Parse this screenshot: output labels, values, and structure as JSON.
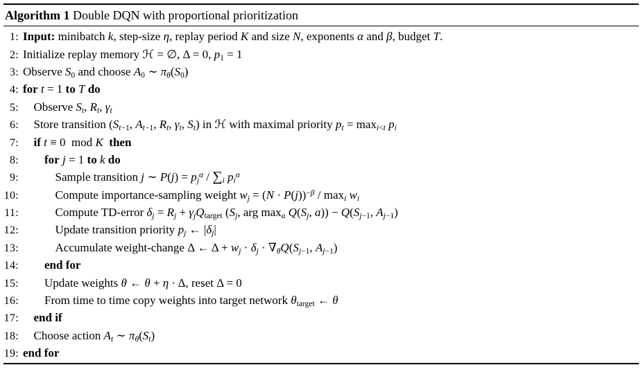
{
  "algorithm": {
    "caption": {
      "label": "Algorithm 1",
      "title": "Double DQN with proportional prioritization"
    },
    "lines": [
      {
        "num": "1:",
        "indent": 0,
        "html": "<b>Input:</b> minibatch <i>k</i>, step-size <i>η</i>, replay period <i>K</i> and size <i>N</i>, exponents <i>α</i> and <i>β</i>, budget <i>T</i>."
      },
      {
        "num": "2:",
        "indent": 0,
        "html": "Initialize replay memory <span class='cal'>ℋ</span> = ∅, Δ = 0, <i>p</i><sub>1</sub> = 1"
      },
      {
        "num": "3:",
        "indent": 0,
        "html": "Observe <i>S</i><sub>0</sub> and choose <i>A</i><sub>0</sub> ∼ <i>π<sub>θ</sub></i>(<i>S</i><sub>0</sub>)"
      },
      {
        "num": "4:",
        "indent": 0,
        "html": "<b>for</b> <i>t</i> = 1 <b>to</b> <i>T</i> <b>do</b>"
      },
      {
        "num": "5:",
        "indent": 1,
        "html": "Observe <i>S<sub>t</sub></i>, <i>R<sub>t</sub></i>, <i>γ<sub>t</sub></i>"
      },
      {
        "num": "6:",
        "indent": 1,
        "html": "Store transition (<i>S</i><sub><i>t</i>−1</sub>, <i>A</i><sub><i>t</i>−1</sub>, <i>R<sub>t</sub></i>, <i>γ<sub>t</sub></i>, <i>S<sub>t</sub></i>) in <span class='cal'>ℋ</span> with maximal priority <i>p<sub>t</sub></i> = max<sub><i>i</i>&lt;<i>t</i></sub> <i>p<sub>i</sub></i>"
      },
      {
        "num": "7:",
        "indent": 1,
        "html": "<b>if</b> <i>t</i> ≡ 0&nbsp; mod <i>K</i>&nbsp; <b>then</b>"
      },
      {
        "num": "8:",
        "indent": 2,
        "html": "<b>for</b> <i>j</i> = 1 <b>to</b> <i>k</i> <b>do</b>"
      },
      {
        "num": "9:",
        "indent": 3,
        "html": "Sample transition <i>j</i> ∼ <i>P</i>(<i>j</i>) = <i>p<sub>j</sub></i><sup><i>α</i></sup> / <span class='sum'>∑</span><sub><i>i</i></sub> <i>p<sub>i</sub></i><sup><i>α</i></sup>"
      },
      {
        "num": "10:",
        "indent": 3,
        "html": "Compute importance-sampling weight <i>w<sub>j</sub></i> = (<i>N</i> · <i>P</i>(<i>j</i>))<sup>−<i>β</i></sup> / max<sub><i>i</i></sub> <i>w<sub>i</sub></i>"
      },
      {
        "num": "11:",
        "indent": 3,
        "html": "Compute TD-error <i>δ<sub>j</sub></i> = <i>R<sub>j</sub></i> + <i>γ<sub>j</sub>Q</i><sub>target</sub> (<i>S<sub>j</sub></i>, arg max<sub><i>a</i></sub> <i>Q</i>(<i>S<sub>j</sub></i>, <i>a</i>)) − <i>Q</i>(<i>S</i><sub><i>j</i>−1</sub>, <i>A</i><sub><i>j</i>−1</sub>)"
      },
      {
        "num": "12:",
        "indent": 3,
        "html": "Update transition priority <i>p<sub>j</sub></i> ← |<i>δ<sub>j</sub></i>|"
      },
      {
        "num": "13:",
        "indent": 3,
        "html": "Accumulate weight-change Δ ← Δ + <i>w<sub>j</sub></i> · <i>δ<sub>j</sub></i> · ∇<sub><i>θ</i></sub><i>Q</i>(<i>S</i><sub><i>j</i>−1</sub>, <i>A</i><sub><i>j</i>−1</sub>)"
      },
      {
        "num": "14:",
        "indent": 2,
        "html": "<b>end for</b>"
      },
      {
        "num": "15:",
        "indent": 2,
        "html": "Update weights <i>θ</i> ← <i>θ</i> + <i>η</i> · Δ, reset Δ = 0"
      },
      {
        "num": "16:",
        "indent": 2,
        "html": "From time to time copy weights into target network <i>θ</i><sub>target</sub> ← <i>θ</i>"
      },
      {
        "num": "17:",
        "indent": 1,
        "html": "<b>end if</b>"
      },
      {
        "num": "18:",
        "indent": 1,
        "html": "Choose action <i>A<sub>t</sub></i> ∼ <i>π<sub>θ</sub></i>(<i>S<sub>t</sub></i>)"
      },
      {
        "num": "19:",
        "indent": 0,
        "html": "<b>end for</b>"
      }
    ]
  }
}
